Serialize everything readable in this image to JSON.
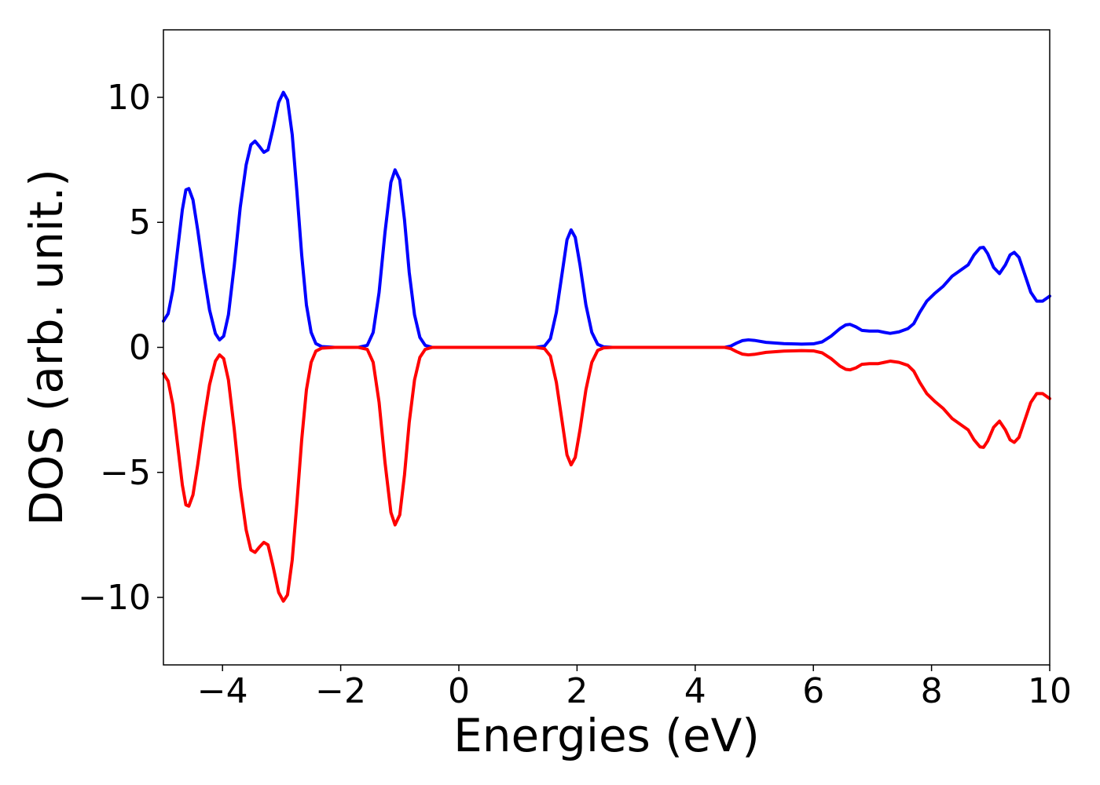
{
  "chart_data": {
    "type": "line",
    "title": "",
    "xlabel": "Energies (eV)",
    "ylabel": "DOS (arb. unit.)",
    "xlim": [
      -5,
      10
    ],
    "ylim": [
      -12.7,
      12.7
    ],
    "x_ticks": [
      -4,
      -2,
      0,
      2,
      4,
      6,
      8,
      10
    ],
    "y_ticks": [
      -10,
      -5,
      0,
      5,
      10
    ],
    "x_tick_labels": [
      "−4",
      "−2",
      "0",
      "2",
      "4",
      "6",
      "8",
      "10"
    ],
    "y_tick_labels": [
      "−10",
      "−5",
      "0",
      "5",
      "10"
    ],
    "grid": false,
    "legend": "none",
    "series": [
      {
        "color": "#0000ff",
        "points": [
          [
            -5.0,
            1.05
          ],
          [
            -4.92,
            1.35
          ],
          [
            -4.84,
            2.3
          ],
          [
            -4.76,
            3.9
          ],
          [
            -4.68,
            5.5
          ],
          [
            -4.62,
            6.3
          ],
          [
            -4.57,
            6.35
          ],
          [
            -4.5,
            5.9
          ],
          [
            -4.42,
            4.7
          ],
          [
            -4.32,
            3.0
          ],
          [
            -4.22,
            1.5
          ],
          [
            -4.12,
            0.55
          ],
          [
            -4.05,
            0.3
          ],
          [
            -3.98,
            0.45
          ],
          [
            -3.9,
            1.3
          ],
          [
            -3.8,
            3.3
          ],
          [
            -3.7,
            5.6
          ],
          [
            -3.6,
            7.3
          ],
          [
            -3.52,
            8.1
          ],
          [
            -3.45,
            8.25
          ],
          [
            -3.38,
            8.05
          ],
          [
            -3.3,
            7.8
          ],
          [
            -3.23,
            7.9
          ],
          [
            -3.15,
            8.7
          ],
          [
            -3.05,
            9.8
          ],
          [
            -2.97,
            10.2
          ],
          [
            -2.9,
            9.9
          ],
          [
            -2.82,
            8.5
          ],
          [
            -2.74,
            6.2
          ],
          [
            -2.66,
            3.7
          ],
          [
            -2.58,
            1.7
          ],
          [
            -2.5,
            0.6
          ],
          [
            -2.42,
            0.15
          ],
          [
            -2.32,
            0.03
          ],
          [
            -2.1,
            0.0
          ],
          [
            -1.7,
            0.0
          ],
          [
            -1.55,
            0.08
          ],
          [
            -1.45,
            0.6
          ],
          [
            -1.35,
            2.2
          ],
          [
            -1.25,
            4.6
          ],
          [
            -1.15,
            6.6
          ],
          [
            -1.08,
            7.1
          ],
          [
            -1.0,
            6.7
          ],
          [
            -0.92,
            5.1
          ],
          [
            -0.84,
            3.0
          ],
          [
            -0.75,
            1.3
          ],
          [
            -0.66,
            0.4
          ],
          [
            -0.57,
            0.08
          ],
          [
            -0.45,
            0.0
          ],
          [
            1.3,
            0.0
          ],
          [
            1.45,
            0.05
          ],
          [
            1.55,
            0.35
          ],
          [
            1.65,
            1.4
          ],
          [
            1.75,
            3.0
          ],
          [
            1.83,
            4.3
          ],
          [
            1.9,
            4.7
          ],
          [
            1.97,
            4.4
          ],
          [
            2.05,
            3.3
          ],
          [
            2.15,
            1.7
          ],
          [
            2.25,
            0.6
          ],
          [
            2.35,
            0.12
          ],
          [
            2.45,
            0.02
          ],
          [
            2.6,
            0.0
          ],
          [
            4.5,
            0.0
          ],
          [
            4.6,
            0.05
          ],
          [
            4.7,
            0.17
          ],
          [
            4.8,
            0.27
          ],
          [
            4.9,
            0.3
          ],
          [
            5.0,
            0.28
          ],
          [
            5.2,
            0.2
          ],
          [
            5.5,
            0.15
          ],
          [
            5.8,
            0.13
          ],
          [
            6.0,
            0.14
          ],
          [
            6.15,
            0.22
          ],
          [
            6.3,
            0.45
          ],
          [
            6.45,
            0.75
          ],
          [
            6.55,
            0.9
          ],
          [
            6.62,
            0.92
          ],
          [
            6.72,
            0.82
          ],
          [
            6.82,
            0.68
          ],
          [
            6.95,
            0.65
          ],
          [
            7.1,
            0.65
          ],
          [
            7.2,
            0.6
          ],
          [
            7.3,
            0.56
          ],
          [
            7.45,
            0.62
          ],
          [
            7.6,
            0.75
          ],
          [
            7.7,
            0.95
          ],
          [
            7.8,
            1.4
          ],
          [
            7.92,
            1.85
          ],
          [
            8.05,
            2.15
          ],
          [
            8.2,
            2.45
          ],
          [
            8.35,
            2.85
          ],
          [
            8.5,
            3.1
          ],
          [
            8.62,
            3.3
          ],
          [
            8.72,
            3.7
          ],
          [
            8.82,
            3.98
          ],
          [
            8.88,
            4.0
          ],
          [
            8.95,
            3.75
          ],
          [
            9.05,
            3.2
          ],
          [
            9.15,
            2.95
          ],
          [
            9.25,
            3.3
          ],
          [
            9.33,
            3.7
          ],
          [
            9.4,
            3.8
          ],
          [
            9.48,
            3.6
          ],
          [
            9.58,
            2.9
          ],
          [
            9.68,
            2.2
          ],
          [
            9.78,
            1.85
          ],
          [
            9.88,
            1.85
          ],
          [
            10.0,
            2.05
          ]
        ]
      },
      {
        "color": "#ff0000",
        "points": [
          [
            -5.0,
            -1.05
          ],
          [
            -4.92,
            -1.35
          ],
          [
            -4.84,
            -2.3
          ],
          [
            -4.76,
            -3.9
          ],
          [
            -4.68,
            -5.5
          ],
          [
            -4.62,
            -6.3
          ],
          [
            -4.57,
            -6.35
          ],
          [
            -4.5,
            -5.9
          ],
          [
            -4.42,
            -4.7
          ],
          [
            -4.32,
            -3.0
          ],
          [
            -4.22,
            -1.5
          ],
          [
            -4.12,
            -0.55
          ],
          [
            -4.05,
            -0.3
          ],
          [
            -3.98,
            -0.45
          ],
          [
            -3.9,
            -1.3
          ],
          [
            -3.8,
            -3.3
          ],
          [
            -3.7,
            -5.6
          ],
          [
            -3.6,
            -7.3
          ],
          [
            -3.52,
            -8.1
          ],
          [
            -3.45,
            -8.2
          ],
          [
            -3.38,
            -8.0
          ],
          [
            -3.3,
            -7.8
          ],
          [
            -3.23,
            -7.9
          ],
          [
            -3.15,
            -8.7
          ],
          [
            -3.05,
            -9.8
          ],
          [
            -2.97,
            -10.15
          ],
          [
            -2.9,
            -9.9
          ],
          [
            -2.82,
            -8.5
          ],
          [
            -2.74,
            -6.2
          ],
          [
            -2.66,
            -3.7
          ],
          [
            -2.58,
            -1.7
          ],
          [
            -2.5,
            -0.6
          ],
          [
            -2.42,
            -0.15
          ],
          [
            -2.32,
            -0.03
          ],
          [
            -2.1,
            0.0
          ],
          [
            -1.7,
            0.0
          ],
          [
            -1.55,
            -0.08
          ],
          [
            -1.45,
            -0.6
          ],
          [
            -1.35,
            -2.2
          ],
          [
            -1.25,
            -4.6
          ],
          [
            -1.15,
            -6.6
          ],
          [
            -1.08,
            -7.1
          ],
          [
            -1.0,
            -6.7
          ],
          [
            -0.92,
            -5.1
          ],
          [
            -0.84,
            -3.0
          ],
          [
            -0.75,
            -1.3
          ],
          [
            -0.66,
            -0.4
          ],
          [
            -0.57,
            -0.08
          ],
          [
            -0.45,
            0.0
          ],
          [
            1.3,
            0.0
          ],
          [
            1.45,
            -0.05
          ],
          [
            1.55,
            -0.35
          ],
          [
            1.65,
            -1.4
          ],
          [
            1.75,
            -3.0
          ],
          [
            1.83,
            -4.3
          ],
          [
            1.9,
            -4.7
          ],
          [
            1.97,
            -4.4
          ],
          [
            2.05,
            -3.3
          ],
          [
            2.15,
            -1.7
          ],
          [
            2.25,
            -0.6
          ],
          [
            2.35,
            -0.12
          ],
          [
            2.45,
            -0.02
          ],
          [
            2.6,
            0.0
          ],
          [
            4.5,
            0.0
          ],
          [
            4.6,
            -0.05
          ],
          [
            4.7,
            -0.17
          ],
          [
            4.8,
            -0.27
          ],
          [
            4.9,
            -0.3
          ],
          [
            5.0,
            -0.28
          ],
          [
            5.2,
            -0.2
          ],
          [
            5.5,
            -0.15
          ],
          [
            5.8,
            -0.13
          ],
          [
            6.0,
            -0.14
          ],
          [
            6.15,
            -0.22
          ],
          [
            6.3,
            -0.45
          ],
          [
            6.45,
            -0.75
          ],
          [
            6.55,
            -0.88
          ],
          [
            6.62,
            -0.9
          ],
          [
            6.72,
            -0.82
          ],
          [
            6.82,
            -0.68
          ],
          [
            6.95,
            -0.65
          ],
          [
            7.1,
            -0.65
          ],
          [
            7.2,
            -0.6
          ],
          [
            7.3,
            -0.55
          ],
          [
            7.45,
            -0.6
          ],
          [
            7.6,
            -0.72
          ],
          [
            7.7,
            -0.95
          ],
          [
            7.8,
            -1.4
          ],
          [
            7.92,
            -1.85
          ],
          [
            8.05,
            -2.15
          ],
          [
            8.2,
            -2.45
          ],
          [
            8.35,
            -2.85
          ],
          [
            8.5,
            -3.1
          ],
          [
            8.62,
            -3.3
          ],
          [
            8.72,
            -3.7
          ],
          [
            8.82,
            -3.98
          ],
          [
            8.88,
            -4.0
          ],
          [
            8.95,
            -3.75
          ],
          [
            9.05,
            -3.2
          ],
          [
            9.15,
            -2.95
          ],
          [
            9.25,
            -3.3
          ],
          [
            9.33,
            -3.7
          ],
          [
            9.4,
            -3.8
          ],
          [
            9.48,
            -3.6
          ],
          [
            9.58,
            -2.9
          ],
          [
            9.68,
            -2.2
          ],
          [
            9.78,
            -1.85
          ],
          [
            9.88,
            -1.85
          ],
          [
            10.0,
            -2.05
          ]
        ]
      }
    ]
  }
}
